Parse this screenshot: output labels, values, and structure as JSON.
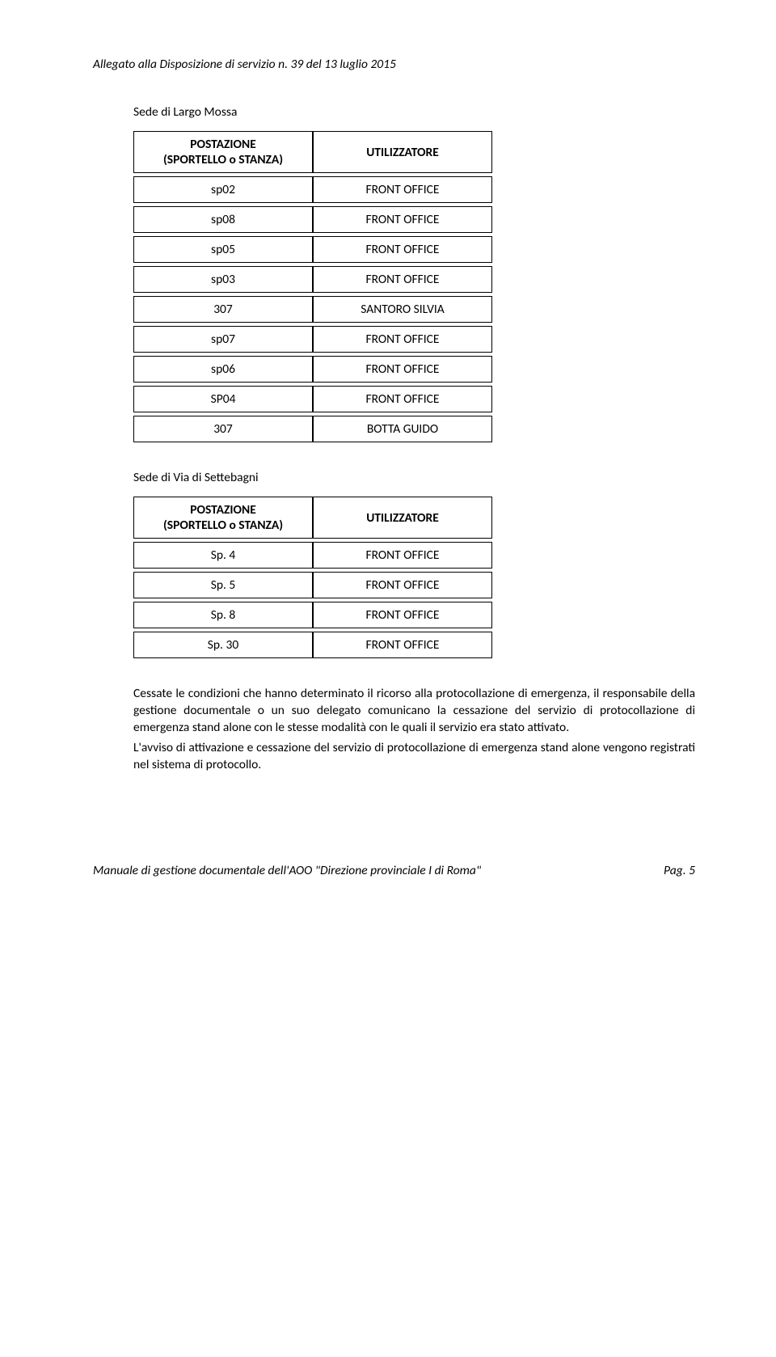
{
  "header": "Allegato alla Disposizione di servizio n. 39 del 13 luglio 2015",
  "section1": {
    "title": "Sede di Largo Mossa",
    "col1_header_l1": "POSTAZIONE",
    "col1_header_l2": "(SPORTELLO o STANZA)",
    "col2_header": "UTILIZZATORE",
    "rows": [
      {
        "c1": "sp02",
        "c2": "FRONT OFFICE"
      },
      {
        "c1": "sp08",
        "c2": "FRONT OFFICE"
      },
      {
        "c1": "sp05",
        "c2": "FRONT OFFICE"
      },
      {
        "c1": "sp03",
        "c2": "FRONT OFFICE"
      },
      {
        "c1": "307",
        "c2": "SANTORO SILVIA"
      },
      {
        "c1": "sp07",
        "c2": "FRONT OFFICE"
      },
      {
        "c1": "sp06",
        "c2": "FRONT OFFICE"
      },
      {
        "c1": "SP04",
        "c2": "FRONT OFFICE"
      },
      {
        "c1": "307",
        "c2": "BOTTA GUIDO"
      }
    ]
  },
  "section2": {
    "title": "Sede di Via di Settebagni",
    "col1_header_l1": "POSTAZIONE",
    "col1_header_l2": "(SPORTELLO o STANZA)",
    "col2_header": "UTILIZZATORE",
    "rows": [
      {
        "c1": "Sp. 4",
        "c2": "FRONT OFFICE"
      },
      {
        "c1": "Sp. 5",
        "c2": "FRONT OFFICE"
      },
      {
        "c1": "Sp. 8",
        "c2": "FRONT OFFICE"
      },
      {
        "c1": "Sp. 30",
        "c2": "FRONT OFFICE"
      }
    ]
  },
  "paragraphs": {
    "p1": "Cessate le condizioni che hanno determinato il ricorso alla protocollazione di emergenza, il responsabile della gestione documentale o un suo delegato comunicano la cessazione del servizio di protocollazione di emergenza stand alone con le stesse modalità con le quali il servizio era stato attivato.",
    "p2": "L'avviso di attivazione e cessazione del servizio di protocollazione di emergenza stand alone vengono registrati nel sistema di protocollo."
  },
  "footer": {
    "left": "Manuale di gestione documentale dell'AOO \"Direzione provinciale I di Roma\"",
    "right": "Pag. 5"
  }
}
